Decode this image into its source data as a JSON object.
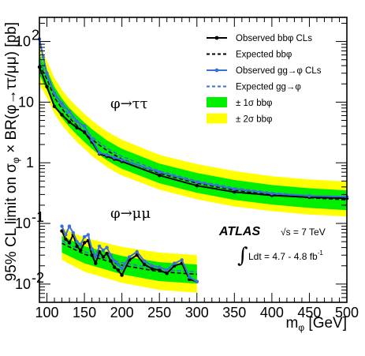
{
  "chart_data": {
    "type": "line",
    "xlabel": "m_φ [GeV]",
    "ylabel": "95% CL limit on σ_φ × BR(φ→ττ/μμ) [pb]",
    "xlim": [
      90,
      500
    ],
    "ylim": [
      0.005,
      250
    ],
    "yscale": "log",
    "x_ticks": [
      100,
      150,
      200,
      250,
      300,
      350,
      400,
      450,
      500
    ],
    "y_ticks": [
      {
        "value": 0.01,
        "label": "10",
        "exp": "-2"
      },
      {
        "value": 0.1,
        "label": "10",
        "exp": "-1"
      },
      {
        "value": 1,
        "label": "1",
        "exp": ""
      },
      {
        "value": 10,
        "label": "10",
        "exp": ""
      },
      {
        "value": 100,
        "label": "10",
        "exp": "2"
      }
    ],
    "legend": {
      "placement": "top-right",
      "entries": [
        {
          "key": "obs_bb",
          "label": "Observed bbφ CLs",
          "style": "solid-dot",
          "color": "#000000"
        },
        {
          "key": "exp_bb",
          "label": "Expected bbφ",
          "style": "dashed",
          "color": "#000000"
        },
        {
          "key": "obs_gg",
          "label": "Observed gg→φ CLs",
          "style": "solid-dot",
          "color": "#3a6fd8"
        },
        {
          "key": "exp_gg",
          "label": "Expected gg→φ",
          "style": "dashed",
          "color": "#3a6fd8"
        },
        {
          "key": "band1",
          "label": "± 1σ bbφ",
          "style": "box",
          "color": "#00ee00"
        },
        {
          "key": "band2",
          "label": "± 2σ bbφ",
          "style": "box",
          "color": "#ffff00"
        }
      ]
    },
    "annotations": {
      "tautau": "φ→ττ",
      "mumu": "φ→μμ",
      "atlas": "ATLAS",
      "energy": "√s = 7 TeV",
      "lumi_int": "∫",
      "lumi": "Ldt = 4.7 - 4.8 fb",
      "lumi_exp": "-1"
    },
    "colors": {
      "band1": "#00ee00",
      "band2": "#ffff00",
      "observed_bb": "#000000",
      "observed_gg": "#3a6fd8"
    },
    "tautau": {
      "x": [
        90,
        100,
        110,
        120,
        130,
        140,
        150,
        160,
        170,
        180,
        190,
        200,
        250,
        300,
        350,
        400,
        450,
        500
      ],
      "band2_lo": [
        20,
        12,
        6.5,
        4.2,
        3.0,
        2.2,
        1.7,
        1.3,
        1.05,
        0.85,
        0.72,
        0.62,
        0.36,
        0.25,
        0.19,
        0.16,
        0.14,
        0.13
      ],
      "band1_lo": [
        28,
        16,
        8.5,
        5.5,
        3.9,
        2.9,
        2.2,
        1.7,
        1.35,
        1.1,
        0.93,
        0.8,
        0.46,
        0.32,
        0.245,
        0.205,
        0.18,
        0.165
      ],
      "band1_hi": [
        62,
        34,
        18,
        11.5,
        8.0,
        6.0,
        4.6,
        3.6,
        2.9,
        2.35,
        2.0,
        1.7,
        0.97,
        0.68,
        0.52,
        0.43,
        0.38,
        0.35
      ],
      "band2_hi": [
        85,
        48,
        25,
        16,
        11.2,
        8.4,
        6.4,
        5.0,
        4.0,
        3.3,
        2.8,
        2.4,
        1.35,
        0.95,
        0.73,
        0.6,
        0.53,
        0.49
      ],
      "expected_bb": [
        42,
        24,
        12,
        7.8,
        5.5,
        4.1,
        3.1,
        2.45,
        1.95,
        1.6,
        1.35,
        1.15,
        0.67,
        0.46,
        0.355,
        0.3,
        0.265,
        0.245
      ],
      "expected_gg": [
        48,
        27,
        13.5,
        8.6,
        6.0,
        4.5,
        3.4,
        2.7,
        2.15,
        1.75,
        1.48,
        1.27,
        0.73,
        0.5,
        0.385,
        0.32,
        0.285,
        0.265
      ],
      "observed_bb_x": [
        90,
        100,
        110,
        120,
        130,
        140,
        150,
        160,
        170,
        180,
        190,
        200,
        250,
        300,
        350,
        400,
        450,
        500
      ],
      "observed_bb": [
        38,
        18,
        8.5,
        6.2,
        4.7,
        3.8,
        3.2,
        2.2,
        1.4,
        1.28,
        1.15,
        1.05,
        0.62,
        0.42,
        0.33,
        0.29,
        0.27,
        0.26
      ],
      "observed_gg_x": [
        90,
        95,
        100,
        110,
        120,
        130,
        140,
        150,
        160,
        170,
        180,
        190,
        200,
        250,
        300,
        350,
        400,
        450,
        500
      ],
      "observed_gg": [
        110,
        55,
        30,
        14,
        9.5,
        7.0,
        4.8,
        4.0,
        2.4,
        1.45,
        1.35,
        1.22,
        1.12,
        0.7,
        0.48,
        0.37,
        0.31,
        0.285,
        0.275
      ]
    },
    "mumu": {
      "x": [
        120,
        150,
        200,
        250,
        300
      ],
      "band2_lo": [
        0.025,
        0.016,
        0.0105,
        0.008,
        0.0072
      ],
      "band1_lo": [
        0.033,
        0.022,
        0.0145,
        0.0112,
        0.0102
      ],
      "band1_hi": [
        0.062,
        0.042,
        0.029,
        0.023,
        0.021
      ],
      "band2_hi": [
        0.085,
        0.058,
        0.041,
        0.033,
        0.03
      ],
      "expected_bb": [
        0.047,
        0.031,
        0.0205,
        0.016,
        0.0145
      ],
      "expected_gg": [
        0.052,
        0.034,
        0.0225,
        0.0175,
        0.0158
      ],
      "observed_bb_x": [
        120,
        125,
        130,
        135,
        140,
        145,
        150,
        155,
        160,
        165,
        170,
        175,
        180,
        185,
        190,
        195,
        200,
        210,
        220,
        230,
        240,
        250,
        260,
        270,
        280,
        290,
        300
      ],
      "observed_bb": [
        0.075,
        0.055,
        0.048,
        0.065,
        0.042,
        0.036,
        0.048,
        0.052,
        0.03,
        0.022,
        0.034,
        0.028,
        0.032,
        0.024,
        0.019,
        0.017,
        0.014,
        0.025,
        0.03,
        0.021,
        0.018,
        0.017,
        0.015,
        0.02,
        0.022,
        0.012,
        0.011
      ],
      "observed_gg_x": [
        120,
        125,
        130,
        135,
        140,
        145,
        150,
        155,
        160,
        165,
        170,
        175,
        180,
        185,
        190,
        195,
        200,
        210,
        220,
        230,
        240,
        250,
        260,
        270,
        280,
        290,
        300
      ],
      "observed_gg": [
        0.09,
        0.065,
        0.09,
        0.07,
        0.05,
        0.045,
        0.06,
        0.065,
        0.038,
        0.028,
        0.042,
        0.036,
        0.04,
        0.03,
        0.024,
        0.021,
        0.018,
        0.028,
        0.034,
        0.024,
        0.02,
        0.019,
        0.017,
        0.022,
        0.025,
        0.013,
        0.011
      ]
    }
  }
}
